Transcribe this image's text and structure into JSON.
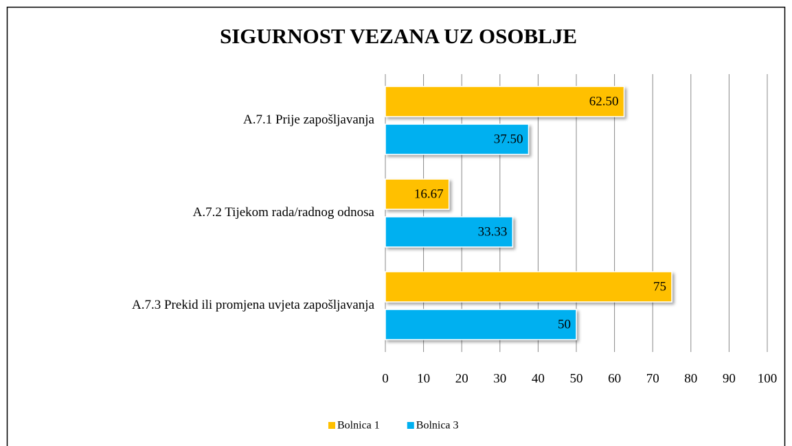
{
  "chart_data": {
    "type": "hbar",
    "title": "SIGURNOST VEZANA UZ OSOBLJE",
    "categories": [
      "A.7.1 Prije zapošljavanja",
      "A.7.2 Tijekom rada/radnog odnosa",
      "A.7.3 Prekid ili promjena uvjeta zapošljavanja"
    ],
    "series": [
      {
        "name": "Bolnica 1",
        "color": "#ffc000",
        "values": [
          62.5,
          16.67,
          75
        ],
        "value_labels": [
          "62.50",
          "16.67",
          "75"
        ]
      },
      {
        "name": "Bolnica 3",
        "color": "#00b0f0",
        "values": [
          37.5,
          33.33,
          50
        ],
        "value_labels": [
          "37.50",
          "33.33",
          "50"
        ]
      }
    ],
    "xlim": [
      0,
      100
    ],
    "xticks": [
      0,
      10,
      20,
      30,
      40,
      50,
      60,
      70,
      80,
      90,
      100
    ],
    "grid": true,
    "legend": "bottom"
  }
}
